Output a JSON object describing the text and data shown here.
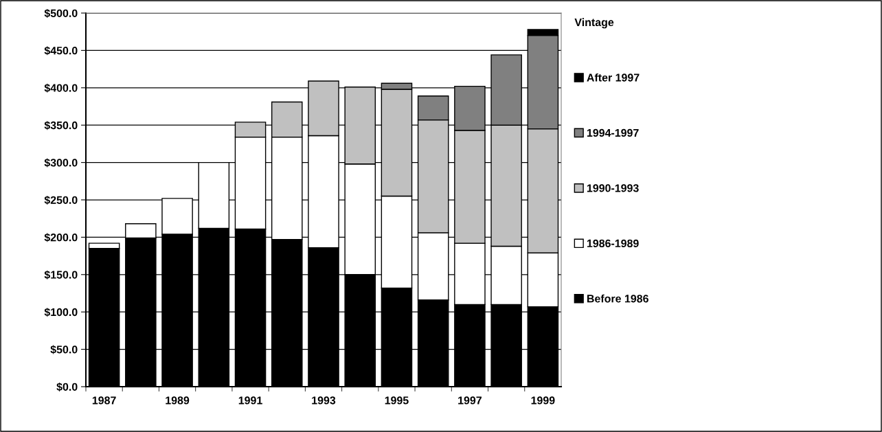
{
  "chart_data": {
    "type": "bar",
    "stacked": true,
    "legend_title": "Vintage",
    "legend": "right",
    "grid": "y",
    "categories": [
      "1987",
      null,
      "1989",
      null,
      "1991",
      null,
      "1993",
      null,
      "1995",
      null,
      "1997",
      null,
      "1999"
    ],
    "series": [
      {
        "name": "Before 1986",
        "color": "#000000",
        "values": [
          185,
          199,
          204,
          212,
          211,
          197,
          186,
          150,
          132,
          116,
          110,
          110,
          107
        ]
      },
      {
        "name": "1986-1989",
        "color": "#ffffff",
        "values": [
          7,
          19,
          48,
          88,
          123,
          137,
          150,
          148,
          123,
          90,
          82,
          78,
          72
        ]
      },
      {
        "name": "1990-1993",
        "color": "#c0c0c0",
        "values": [
          null,
          null,
          null,
          null,
          20,
          47,
          73,
          103,
          143,
          151,
          151,
          162,
          166
        ]
      },
      {
        "name": "1994-1997",
        "color": "#808080",
        "values": [
          null,
          null,
          null,
          null,
          null,
          null,
          null,
          null,
          8,
          32,
          59,
          94,
          125
        ]
      },
      {
        "name": "After 1997",
        "color": "#000000",
        "values": [
          null,
          null,
          null,
          null,
          null,
          null,
          null,
          null,
          null,
          null,
          null,
          null,
          8
        ]
      }
    ],
    "ylim": [
      0,
      500
    ],
    "yticks": [
      {
        "value": 0,
        "label": "$0.0"
      },
      {
        "value": 50,
        "label": "$50.0"
      },
      {
        "value": 100,
        "label": "$100.0"
      },
      {
        "value": 150,
        "label": "$150.0"
      },
      {
        "value": 200,
        "label": "$200.0"
      },
      {
        "value": 250,
        "label": "$250.0"
      },
      {
        "value": 300,
        "label": "$300.0"
      },
      {
        "value": 350,
        "label": "$350.0"
      },
      {
        "value": 400,
        "label": "$400.0"
      },
      {
        "value": 450,
        "label": "$450.0"
      },
      {
        "value": 500,
        "label": "$500.0"
      }
    ]
  }
}
